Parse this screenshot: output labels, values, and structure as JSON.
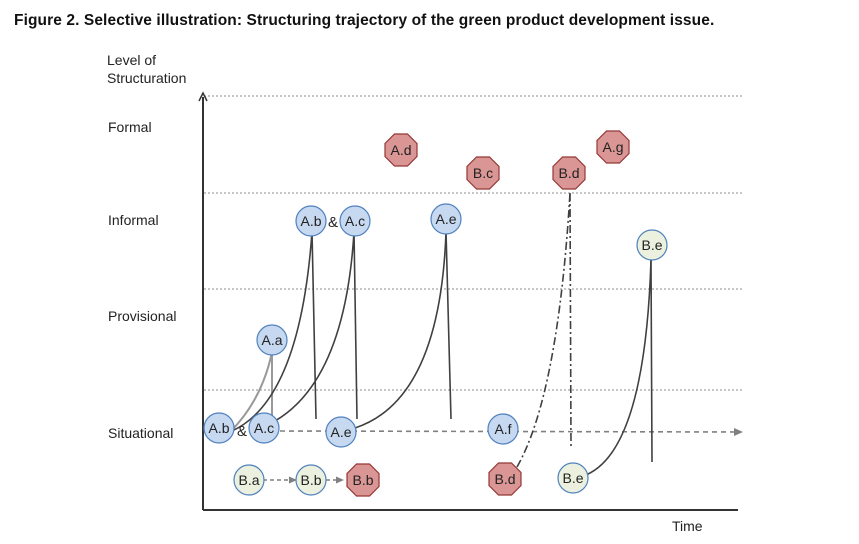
{
  "figure": {
    "title": "Figure 2.  Selective illustration: Structuring trajectory of the green product development issue."
  },
  "axes": {
    "y_label_line1": "Level of",
    "y_label_line2": "Structuration",
    "x_label": "Time"
  },
  "levels": [
    "Formal",
    "Informal",
    "Provisional",
    "Situational"
  ],
  "colors": {
    "blue_fill": "#c6d9f1",
    "blue_stroke": "#4f81bd",
    "red_fill": "#d99694",
    "red_stroke": "#953735",
    "green_fill": "#ebf1de",
    "green_stroke": "#4f81bd",
    "line": "#404040",
    "arrow": "#808080",
    "grid": "#8c8c8c"
  },
  "nodes": {
    "a_b_low": "A.b",
    "a_c_low": "A.c",
    "amp_low": "&",
    "a_a": "A.a",
    "a_b_high": "A.b",
    "amp_high": "&",
    "a_c_high": "A.c",
    "a_e_low": "A.e",
    "a_e_high": "A.e",
    "a_f": "A.f",
    "a_d": "A.d",
    "b_c": "B.c",
    "b_d_high": "B.d",
    "a_g": "A.g",
    "b_a": "B.a",
    "b_b_green": "B.b",
    "b_b_red": "B.b",
    "b_d_low": "B.d",
    "b_e_low": "B.e",
    "b_e_high": "B.e"
  }
}
